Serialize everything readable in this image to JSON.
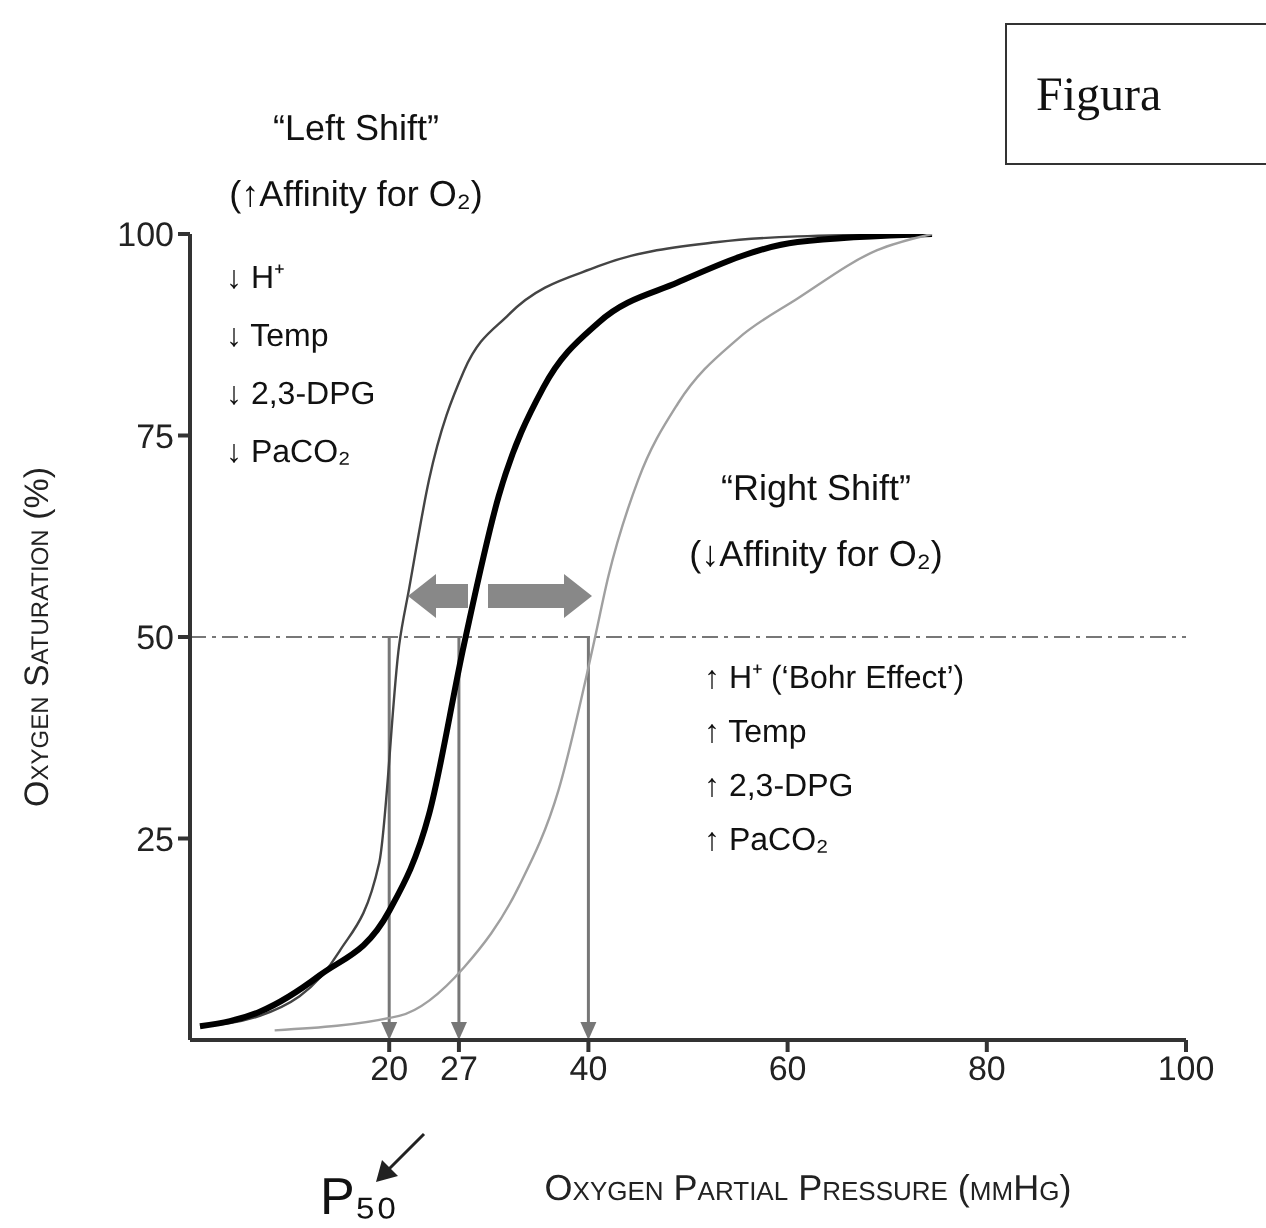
{
  "chart_data": {
    "type": "line",
    "xlabel": "Oxygen Partial Pressure (mmHg)",
    "ylabel": "Oxygen Saturation (%)",
    "xlim": [
      0,
      100
    ],
    "xticks": [
      20,
      27,
      40,
      60,
      80,
      100
    ],
    "ylim": [
      0,
      100
    ],
    "yticks": [
      25,
      50,
      75,
      100
    ],
    "grid": false,
    "legend": false,
    "marker": "none",
    "line_style": "solid",
    "series": [
      {
        "color": "#444444",
        "x": [
          1,
          7,
          15,
          19,
          21,
          22,
          24,
          27.5,
          32,
          41,
          53,
          61,
          74.5
        ],
        "values": [
          1.7,
          3,
          11,
          22,
          49,
          56,
          69.5,
          83,
          90,
          96,
          99,
          99.7,
          100
        ]
      },
      {
        "color": "#000000",
        "x": [
          1,
          7,
          13,
          20,
          24,
          27.5,
          31,
          35.5,
          41,
          49,
          61,
          74.5
        ],
        "values": [
          1.7,
          3.5,
          8,
          16,
          28,
          49,
          67.5,
          81,
          89,
          94,
          99,
          100
        ]
      },
      {
        "color": "#a0a0a0",
        "x": [
          8.5,
          21,
          27.5,
          33,
          37,
          40.5,
          42,
          45,
          49,
          55,
          61,
          69,
          74.5
        ],
        "values": [
          1.2,
          3,
          9,
          19,
          31,
          49,
          57.5,
          69.5,
          79,
          87,
          92,
          98,
          100
        ]
      }
    ],
    "ref_lines": [
      {
        "axis": "y",
        "value": 50,
        "color": "#777777",
        "line_style": "dashdot"
      },
      {
        "axis": "x",
        "value": 20,
        "color": "#777777"
      },
      {
        "axis": "x",
        "value": 27,
        "color": "#777777"
      },
      {
        "axis": "x",
        "value": 40,
        "color": "#777777"
      }
    ],
    "annotations": [
      "“Left Shift”",
      "(↑Affinity for O₂)",
      "↓ H⁺",
      "↓ Temp",
      "↓ 2,3-DPG",
      "↓ PaCO₂",
      "“Right Shift”",
      "(↓Affinity for O₂)",
      "↑ H⁺ (‘Bohr Effect’)",
      "↑ Temp",
      "↑ 2,3-DPG",
      "↑ PaCO₂",
      "P₅₀",
      "Figura"
    ]
  }
}
